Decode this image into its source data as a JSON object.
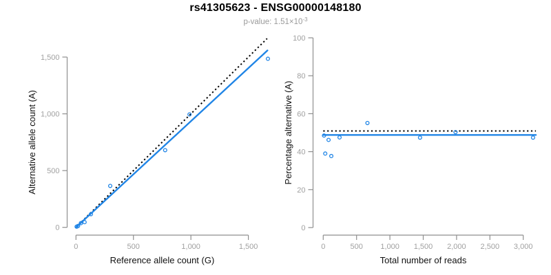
{
  "header": {
    "title": "rs41305623 - ENSG00000148180",
    "p_value_prefix": "p-value: 1.51×10",
    "p_value_exponent": "-3"
  },
  "colors": {
    "accent_blue": "#2085e6",
    "reference_line_black": "#000000",
    "axis_gray": "#8e8e8e",
    "tick_label_gray": "#a0a0a0",
    "subtitle_gray": "#9a9a9a"
  },
  "chart_data": [
    {
      "id": "allele_counts",
      "type": "scatter",
      "title": "",
      "xlabel": "Reference allele count (G)",
      "ylabel": "Alternative allele count (A)",
      "xlim": [
        0,
        1700
      ],
      "ylim": [
        0,
        1675
      ],
      "xticks": [
        0,
        500,
        1000,
        1500
      ],
      "yticks": [
        0,
        500,
        1000,
        1500
      ],
      "grid": false,
      "legend": "none",
      "marker_style": "open-circle",
      "points": [
        [
          6,
          6
        ],
        [
          18,
          12
        ],
        [
          43,
          37
        ],
        [
          75,
          46
        ],
        [
          130,
          116
        ],
        [
          298,
          365
        ],
        [
          776,
          680
        ],
        [
          988,
          995
        ],
        [
          1670,
          1485
        ]
      ],
      "fit_line": {
        "style": "solid",
        "x1": 0,
        "y1": 0,
        "x2": 1666,
        "y2": 1558
      },
      "reference_line": {
        "style": "dotted",
        "x1": 0,
        "y1": 0,
        "x2": 1663,
        "y2": 1663
      }
    },
    {
      "id": "percentage_alternative",
      "type": "scatter",
      "title": "",
      "xlabel": "Total number of reads",
      "ylabel": "Percentage alternative (A)",
      "xlim": [
        0,
        3200
      ],
      "ylim": [
        0,
        100
      ],
      "xticks": [
        0,
        500,
        1000,
        1500,
        2000,
        2500,
        3000
      ],
      "yticks": [
        0,
        20,
        40,
        60,
        80,
        100
      ],
      "grid": false,
      "legend": "none",
      "marker_style": "open-circle",
      "points": [
        [
          12,
          48.5
        ],
        [
          30,
          39
        ],
        [
          80,
          46.2
        ],
        [
          121,
          37.7
        ],
        [
          245,
          47.5
        ],
        [
          663,
          55.1
        ],
        [
          1452,
          47.4
        ],
        [
          1984,
          50.3
        ],
        [
          3147,
          47.4
        ]
      ],
      "fit_line": {
        "style": "solid",
        "x1": 0,
        "y1": 48.8,
        "x2": 3190,
        "y2": 48.8
      },
      "reference_line": {
        "style": "dotted",
        "x1": 0,
        "y1": 50.9,
        "x2": 3190,
        "y2": 50.9
      }
    }
  ]
}
